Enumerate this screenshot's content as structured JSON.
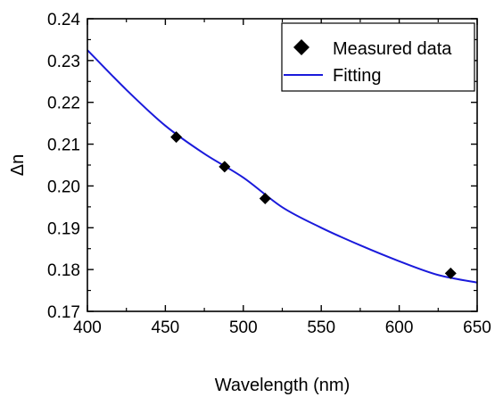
{
  "chart_data": {
    "type": "scatter",
    "xlabel": "Wavelength (nm)",
    "ylabel": "Δn",
    "xlim": [
      400,
      650
    ],
    "ylim": [
      0.17,
      0.24
    ],
    "x_ticks": [
      "400",
      "450",
      "500",
      "550",
      "600",
      "650"
    ],
    "y_ticks": [
      "0.17",
      "0.18",
      "0.19",
      "0.20",
      "0.21",
      "0.22",
      "0.23",
      "0.24"
    ],
    "grid": false,
    "legend_position": "top-right",
    "series": [
      {
        "name": "Measured data",
        "kind": "markers",
        "marker": "diamond",
        "color": "#000000",
        "x": [
          457,
          488,
          514,
          633
        ],
        "y": [
          0.2117,
          0.2046,
          0.197,
          0.1791
        ]
      },
      {
        "name": "Fitting",
        "kind": "line",
        "color": "#1a1adb",
        "x": [
          400,
          425,
          450,
          475,
          500,
          525,
          550,
          575,
          600,
          625,
          650
        ],
        "y": [
          0.2325,
          0.223,
          0.2144,
          0.2077,
          0.202,
          0.1949,
          0.19,
          0.1858,
          0.182,
          0.1787,
          0.1769
        ]
      }
    ]
  }
}
